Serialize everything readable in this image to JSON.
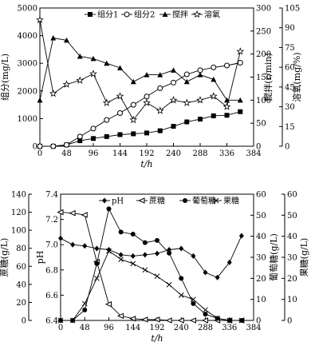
{
  "chart_data": [
    {
      "type": "line",
      "xlabel": "t/h",
      "ylabel_left": "组分(mg/L)",
      "ylabel_right_inner": "搅拌(r/min)",
      "ylabel_right_outer": "溶氧(mg/%)",
      "xlim": [
        0,
        384
      ],
      "x_ticks": [
        "0",
        "48",
        "96",
        "144",
        "192",
        "240",
        "288",
        "336",
        "384"
      ],
      "axes": {
        "left": {
          "lim": [
            0,
            5000
          ],
          "ticks": [
            "0",
            "1000",
            "2000",
            "3000",
            "4000",
            "5000"
          ]
        },
        "right_inner": {
          "lim": [
            0,
            300
          ],
          "ticks": [
            "0",
            "50",
            "100",
            "150",
            "200",
            "250",
            "300"
          ]
        },
        "right_outer": {
          "lim": [
            0,
            105
          ],
          "ticks": [
            "0",
            "15",
            "30",
            "45",
            "60",
            "75",
            "90",
            "105"
          ]
        }
      },
      "series": [
        {
          "name": "组分1",
          "axis": "left",
          "marker": "square-filled",
          "x": [
            0,
            24,
            48,
            72,
            96,
            120,
            144,
            168,
            192,
            216,
            240,
            264,
            288,
            312,
            336,
            360
          ],
          "y": [
            0,
            0,
            50,
            200,
            280,
            350,
            420,
            450,
            480,
            560,
            720,
            880,
            980,
            1100,
            1120,
            1250
          ]
        },
        {
          "name": "组分2",
          "axis": "left",
          "marker": "circle-open",
          "x": [
            0,
            24,
            48,
            72,
            96,
            120,
            144,
            168,
            192,
            216,
            240,
            264,
            288,
            312,
            336,
            360
          ],
          "y": [
            0,
            0,
            50,
            350,
            640,
            950,
            1200,
            1500,
            1800,
            2100,
            2300,
            2600,
            2750,
            2850,
            2920,
            3020
          ]
        },
        {
          "name": "搅拌",
          "axis": "right_inner",
          "marker": "triangle-filled",
          "x": [
            0,
            24,
            48,
            72,
            96,
            120,
            144,
            168,
            192,
            216,
            240,
            264,
            288,
            312,
            336,
            360
          ],
          "y": [
            100,
            235,
            230,
            195,
            190,
            180,
            170,
            140,
            155,
            155,
            165,
            140,
            155,
            145,
            100,
            100
          ]
        },
        {
          "name": "溶氧",
          "axis": "right_outer",
          "marker": "star-open",
          "x": [
            0,
            24,
            48,
            72,
            96,
            120,
            144,
            168,
            192,
            216,
            240,
            264,
            288,
            312,
            336,
            360
          ],
          "y": [
            96,
            40,
            47,
            50,
            55,
            33,
            38,
            20,
            33,
            27,
            35,
            33,
            35,
            38,
            30,
            72
          ]
        }
      ]
    },
    {
      "type": "line",
      "xlabel": "t/h",
      "ylabel_left_outer": "蔗糖(g/L)",
      "ylabel_left_inner": "pH",
      "ylabel_right_inner": "葡萄糖(g/L)",
      "ylabel_right_outer": "果糖(g/L)",
      "xlim": [
        0,
        384
      ],
      "x_ticks": [
        "0",
        "48",
        "96",
        "144",
        "192",
        "240",
        "288",
        "336",
        "384"
      ],
      "axes": {
        "left_outer": {
          "lim": [
            0,
            140
          ],
          "ticks": [
            "0",
            "20",
            "40",
            "60",
            "80",
            "100",
            "120",
            "140"
          ]
        },
        "left_inner": {
          "lim": [
            6.4,
            7.4
          ],
          "ticks": [
            "6.4",
            "6.6",
            "6.8",
            "7.0",
            "7.2",
            "7.4"
          ]
        },
        "right_inner": {
          "lim": [
            0,
            60
          ],
          "ticks": [
            "0",
            "10",
            "20",
            "30",
            "40",
            "50",
            "60"
          ]
        },
        "right_outer": {
          "lim": [
            0,
            60
          ],
          "ticks": [
            "0",
            "10",
            "20",
            "30",
            "40",
            "50",
            "60"
          ]
        }
      },
      "series": [
        {
          "name": "pH",
          "axis": "left_inner",
          "marker": "diamond-filled",
          "x": [
            0,
            24,
            48,
            72,
            96,
            120,
            144,
            168,
            192,
            216,
            240,
            264,
            288,
            312,
            336,
            360
          ],
          "y": [
            7.05,
            7.0,
            6.99,
            6.97,
            6.96,
            6.92,
            6.91,
            6.92,
            6.93,
            6.96,
            6.97,
            6.91,
            6.78,
            6.74,
            6.86,
            7.07
          ]
        },
        {
          "name": "蔗糖",
          "axis": "left_outer",
          "marker": "triangle-left-open",
          "x": [
            0,
            24,
            48,
            72,
            96,
            120,
            144,
            168,
            192,
            216,
            240,
            264,
            288,
            312,
            336,
            360
          ],
          "y": [
            120,
            119,
            117,
            65,
            18,
            5,
            2,
            1,
            1,
            0,
            0,
            0,
            0,
            0,
            0,
            0
          ]
        },
        {
          "name": "葡萄糖",
          "axis": "right_inner",
          "marker": "circle-filled",
          "x": [
            0,
            24,
            48,
            72,
            96,
            120,
            144,
            168,
            192,
            216,
            240,
            264,
            288,
            312,
            336,
            360
          ],
          "y": [
            0,
            0,
            5,
            27,
            53,
            42,
            41,
            37,
            38,
            32,
            20,
            8,
            3,
            1,
            0,
            0
          ]
        },
        {
          "name": "果糖",
          "axis": "right_outer",
          "marker": "x",
          "x": [
            0,
            24,
            48,
            72,
            96,
            120,
            144,
            168,
            192,
            216,
            240,
            264,
            288,
            312,
            336,
            360
          ],
          "y": [
            0,
            0,
            8,
            20,
            33,
            29,
            27,
            24,
            21,
            17,
            12,
            10,
            5,
            1,
            0,
            0
          ]
        }
      ]
    }
  ]
}
